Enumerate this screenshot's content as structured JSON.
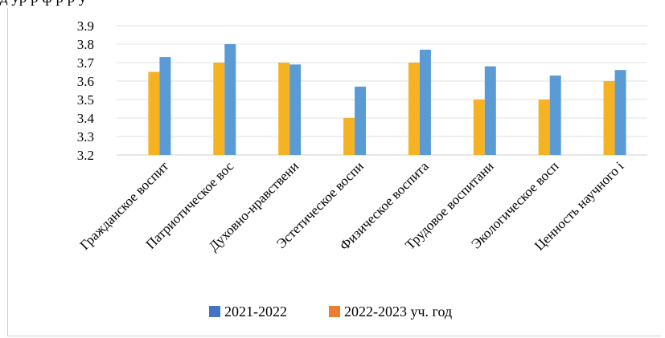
{
  "header_cutoff_text": "д                 ур     р ф р                                                   р    у",
  "chart_data": {
    "type": "bar",
    "categories": [
      "Гражданское воспит",
      "Патриотическое вос",
      "Духовно-нравствени",
      "Эстетическое воспи",
      "Физическое воспита",
      "Трудовое воспитани",
      "Экологическое восп",
      "Ценность научного і"
    ],
    "series": [
      {
        "name": "2022-2023 уч. год",
        "color": "#F5B324",
        "values": [
          3.65,
          3.7,
          3.7,
          3.4,
          3.7,
          3.5,
          3.5,
          3.6
        ]
      },
      {
        "name": "2021-2022",
        "color": "#5B9BD5",
        "values": [
          3.73,
          3.8,
          3.69,
          3.57,
          3.77,
          3.68,
          3.63,
          3.66
        ]
      }
    ],
    "y_ticks": [
      "3.2",
      "3.3",
      "3.4",
      "3.5",
      "3.6",
      "3.7",
      "3.8",
      "3.9"
    ],
    "ylim": [
      3.2,
      3.9
    ],
    "grid": true,
    "legend": {
      "position": "bottom",
      "entries": [
        {
          "label": "2021-2022",
          "color": "#4472C4"
        },
        {
          "label": "2022-2023 уч. год",
          "color": "#ED7D31"
        }
      ]
    }
  }
}
